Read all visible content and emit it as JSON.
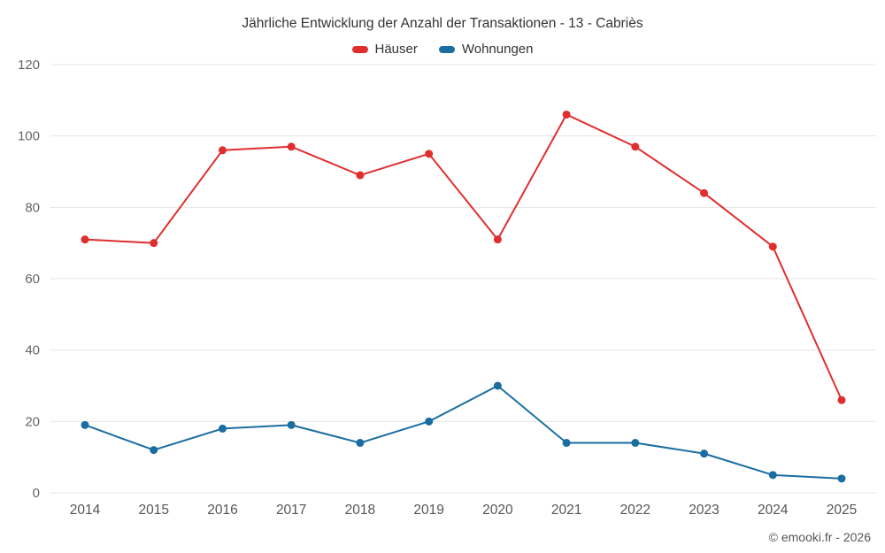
{
  "title": "Jährliche Entwicklung der Anzahl der Transaktionen - 13 - Cabriès",
  "legend": [
    {
      "label": "Häuser",
      "color": "#e02e2e"
    },
    {
      "label": "Wohnungen",
      "color": "#1a6da1"
    }
  ],
  "footer": {
    "copyright": "© emooki.fr - 2026"
  },
  "colors": {
    "grid": "#e6e6e6",
    "ytick_label": "#666666",
    "xtick_label": "#555555"
  },
  "chart_data": {
    "type": "line",
    "x": [
      "2014",
      "2015",
      "2016",
      "2017",
      "2018",
      "2019",
      "2020",
      "2021",
      "2022",
      "2023",
      "2024",
      "2025"
    ],
    "series": [
      {
        "name": "Häuser",
        "color": "#e02e2e",
        "values": [
          71,
          70,
          96,
          97,
          89,
          95,
          71,
          106,
          97,
          84,
          69,
          26
        ]
      },
      {
        "name": "Wohnungen",
        "color": "#1a6da1",
        "values": [
          19,
          12,
          18,
          19,
          14,
          20,
          30,
          14,
          14,
          11,
          5,
          4
        ]
      }
    ],
    "title": "Jährliche Entwicklung der Anzahl der Transaktionen - 13 - Cabriès",
    "xlabel": "",
    "ylabel": "",
    "ylim": [
      0,
      120
    ],
    "yticks": [
      0,
      20,
      40,
      60,
      80,
      100,
      120
    ],
    "grid": "horizontal",
    "legend_position": "top"
  }
}
